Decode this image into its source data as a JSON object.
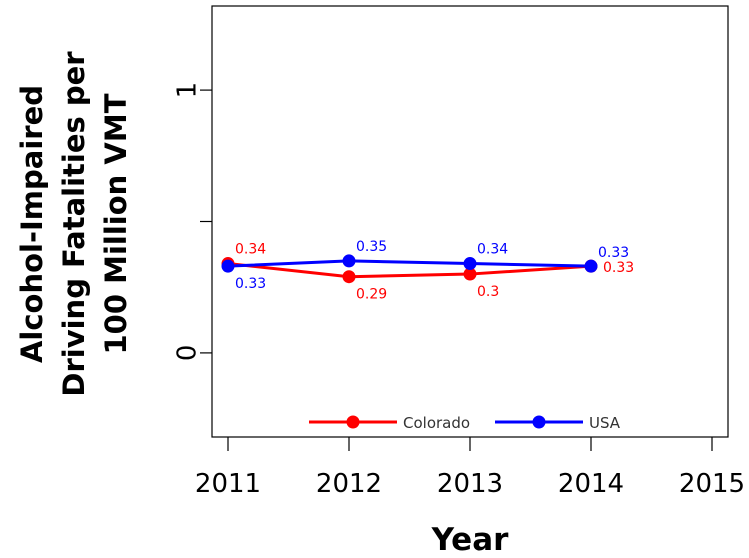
{
  "chart_data": {
    "type": "line",
    "title": "",
    "xlabel": "Year",
    "ylabel_lines": [
      "Alcohol-Impaired",
      "Driving Fatalities per",
      "100 Million VMT"
    ],
    "x": [
      2011,
      2012,
      2013,
      2014
    ],
    "xlim": [
      2011,
      2015
    ],
    "ylim": [
      -0.32,
      1.32
    ],
    "xticks": [
      "2011",
      "2012",
      "2013",
      "2014",
      "2015"
    ],
    "yticks": [
      {
        "value": 0,
        "label": "0"
      },
      {
        "value": 0.5,
        "label": ""
      },
      {
        "value": 1,
        "label": "1"
      }
    ],
    "grid": false,
    "legend_position": "bottom",
    "series": [
      {
        "name": "Colorado",
        "color": "#ff0000",
        "values": [
          0.34,
          0.29,
          0.3,
          0.33
        ],
        "labels": [
          "0.34",
          "0.29",
          "0.3",
          "0.33"
        ]
      },
      {
        "name": "USA",
        "color": "#0000ff",
        "values": [
          0.33,
          0.35,
          0.34,
          0.33
        ],
        "labels": [
          "0.33",
          "0.35",
          "0.34",
          "0.33"
        ]
      }
    ]
  }
}
